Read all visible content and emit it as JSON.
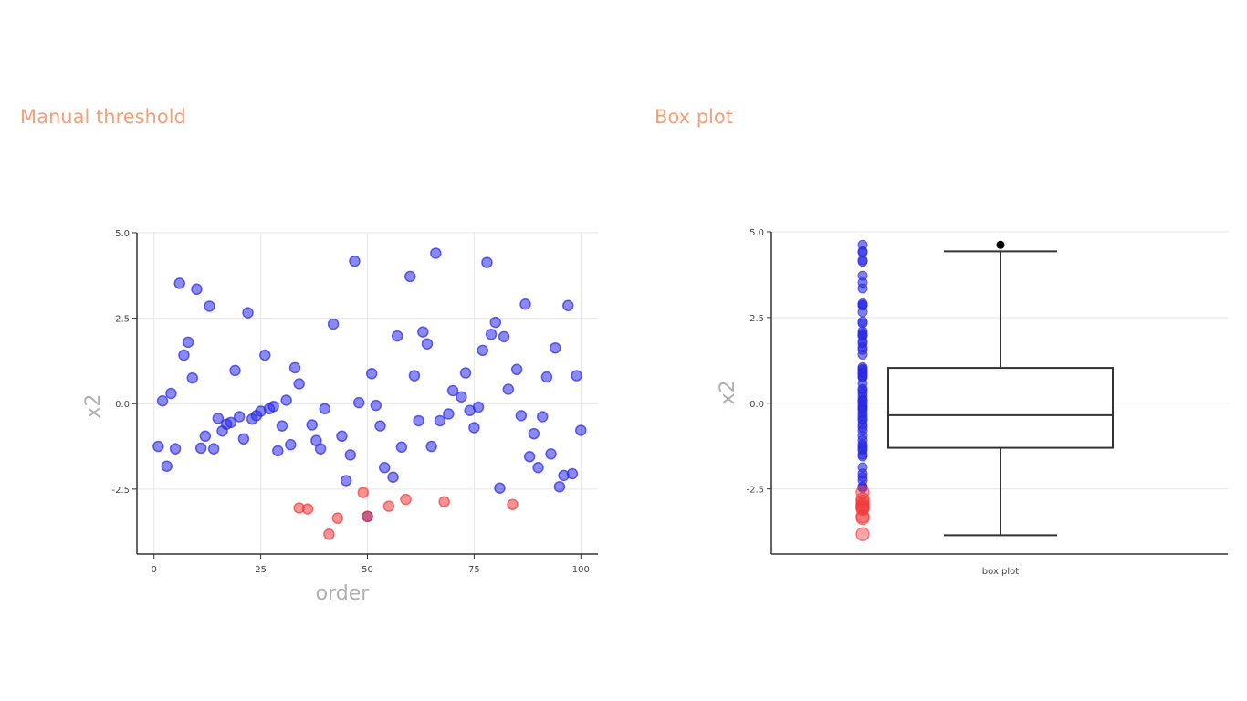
{
  "panels": {
    "left_title": "Manual threshold",
    "right_title": "Box plot"
  },
  "colors": {
    "title": "#f4a07a",
    "normal": "#2a2ae6",
    "outlier": "#f23a3a",
    "box": "#333333",
    "grid": "#e6e6e6"
  },
  "chart_data": [
    {
      "type": "scatter",
      "title": "Manual threshold",
      "xlabel": "order",
      "ylabel": "x2",
      "xlim": [
        -4,
        104
      ],
      "ylim": [
        -4.4,
        5.0
      ],
      "x_ticks": [
        {
          "value": 0,
          "label": "0"
        },
        {
          "value": 25,
          "label": "25"
        },
        {
          "value": 50,
          "label": "50"
        },
        {
          "value": 75,
          "label": "75"
        },
        {
          "value": 100,
          "label": "100"
        }
      ],
      "y_ticks": [
        {
          "value": 5,
          "label": "5.0"
        },
        {
          "value": 2.5,
          "label": "2.5"
        },
        {
          "value": 0,
          "label": "0.0"
        },
        {
          "value": -2.5,
          "label": "-2.5"
        }
      ],
      "grid": true,
      "series": [
        {
          "key": "normal",
          "x": [
            1,
            2,
            3,
            4,
            5,
            6,
            7,
            8,
            9,
            10,
            11,
            12,
            13,
            14,
            15,
            16,
            17,
            18,
            19,
            20,
            21,
            22,
            23,
            24,
            25,
            26,
            27,
            28,
            29,
            30,
            31,
            32,
            33,
            34,
            37,
            38,
            39,
            40,
            42,
            44,
            45,
            46,
            47,
            48,
            50,
            51,
            52,
            53,
            54,
            56,
            57,
            58,
            60,
            61,
            62,
            63,
            64,
            65,
            66,
            67,
            69,
            70,
            72,
            73,
            74,
            75,
            76,
            77,
            78,
            79,
            80,
            81,
            82,
            83,
            85,
            86,
            87,
            88,
            89,
            90,
            91,
            92,
            93,
            94,
            95,
            96,
            97,
            98,
            99,
            100
          ],
          "y": [
            -1.25,
            0.08,
            -1.83,
            0.3,
            -1.32,
            3.52,
            1.42,
            1.8,
            0.75,
            3.35,
            -1.3,
            -0.95,
            2.85,
            -1.32,
            -0.43,
            -0.8,
            -0.6,
            -0.55,
            0.97,
            -0.38,
            -1.03,
            2.66,
            -0.45,
            -0.35,
            -0.22,
            1.42,
            -0.15,
            -0.08,
            -1.38,
            -0.65,
            0.1,
            -1.2,
            1.05,
            0.58,
            -0.62,
            -1.08,
            -1.32,
            -0.15,
            2.33,
            -0.95,
            -2.25,
            -1.5,
            4.17,
            0.03,
            -3.3,
            0.88,
            -0.05,
            -0.65,
            -1.87,
            -2.15,
            1.98,
            -1.27,
            3.72,
            0.82,
            -0.5,
            2.1,
            1.75,
            -1.25,
            4.4,
            -0.5,
            -0.3,
            0.38,
            0.2,
            0.9,
            -0.2,
            -0.7,
            -0.1,
            1.56,
            4.13,
            2.03,
            2.38,
            -2.47,
            1.96,
            0.42,
            1.0,
            -0.35,
            2.91,
            -1.55,
            -0.88,
            -1.87,
            -0.38,
            0.78,
            -1.47,
            1.63,
            -2.43,
            -2.1,
            2.87,
            -2.05,
            0.82,
            -0.78
          ]
        },
        {
          "key": "outlier",
          "x": [
            34,
            36,
            41,
            43,
            49,
            50,
            55,
            59,
            68,
            84
          ],
          "y": [
            -3.05,
            -3.08,
            -3.82,
            -3.35,
            -2.6,
            -3.3,
            -3.0,
            -2.8,
            -2.87,
            -2.95
          ]
        }
      ]
    },
    {
      "type": "box",
      "title": "Box plot",
      "xlabel": "box plot",
      "ylabel": "x2",
      "ylim": [
        -4.4,
        5.0
      ],
      "y_ticks": [
        {
          "value": 5,
          "label": "5.0"
        },
        {
          "value": 2.5,
          "label": "2.5"
        },
        {
          "value": 0,
          "label": "0.0"
        },
        {
          "value": -2.5,
          "label": "-2.5"
        }
      ],
      "grid": true,
      "box": {
        "q1": -1.3,
        "median": -0.35,
        "q3": 1.03,
        "whisker_low": -3.85,
        "whisker_high": 4.43,
        "outliers": [
          4.62
        ]
      },
      "strip_points": {
        "normal": [
          4.62,
          4.43,
          4.4,
          4.17,
          4.13,
          3.72,
          3.52,
          3.35,
          2.91,
          2.87,
          2.85,
          2.66,
          2.38,
          2.33,
          2.1,
          2.03,
          1.98,
          1.96,
          1.8,
          1.75,
          1.63,
          1.56,
          1.42,
          1.05,
          1.0,
          0.97,
          0.9,
          0.88,
          0.82,
          0.78,
          0.75,
          0.58,
          0.42,
          0.38,
          0.3,
          0.2,
          0.1,
          0.08,
          0.03,
          -0.05,
          -0.1,
          -0.15,
          -0.2,
          -0.3,
          -0.38,
          -0.45,
          -0.5,
          -0.62,
          -0.7,
          -0.8,
          -0.95,
          -1.08,
          -1.2,
          -1.25,
          -1.32,
          -1.38,
          -1.5,
          -1.55,
          -1.87,
          -2.05,
          -2.15,
          -2.25,
          -2.43,
          -2.47
        ],
        "outlier": [
          -2.6,
          -2.8,
          -2.87,
          -2.95,
          -3.0,
          -3.05,
          -3.08,
          -3.3,
          -3.35,
          -3.82
        ]
      }
    }
  ]
}
